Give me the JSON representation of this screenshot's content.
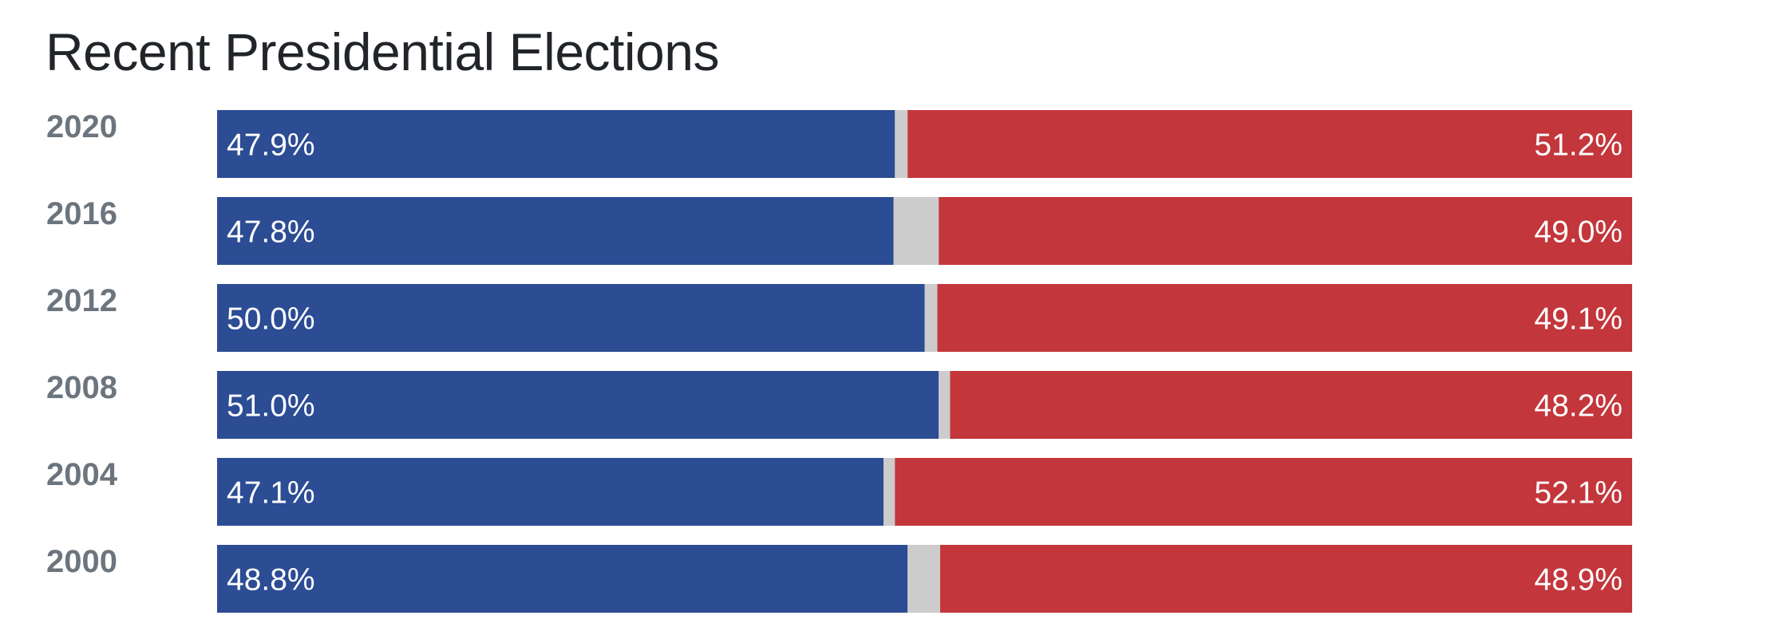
{
  "title": "Recent Presidential Elections",
  "colors": {
    "dem": "#2c4c94",
    "other": "#cccccc",
    "rep": "#c3363b",
    "year_label": "#6c757d",
    "title": "#212529"
  },
  "chart_data": {
    "type": "bar",
    "orientation": "horizontal",
    "stacked": true,
    "normalized_to": 100,
    "title": "Recent Presidential Elections",
    "categories": [
      "2020",
      "2016",
      "2012",
      "2008",
      "2004",
      "2000"
    ],
    "series": [
      {
        "values": [
          47.9,
          47.8,
          50.0,
          51.0,
          47.1,
          48.8
        ]
      },
      {
        "values": [
          0.9,
          3.2,
          0.9,
          0.8,
          0.8,
          2.3
        ]
      },
      {
        "values": [
          51.2,
          49.0,
          49.1,
          48.2,
          52.1,
          48.9
        ]
      }
    ],
    "bar_labels": [
      {
        "left": "47.9%",
        "right": "51.2%"
      },
      {
        "left": "47.8%",
        "right": "49.0%"
      },
      {
        "left": "50.0%",
        "right": "49.1%"
      },
      {
        "left": "51.0%",
        "right": "48.2%"
      },
      {
        "left": "47.1%",
        "right": "52.1%"
      },
      {
        "left": "48.8%",
        "right": "48.9%"
      }
    ],
    "axes_visible": false,
    "grid": false,
    "legend": "none"
  }
}
